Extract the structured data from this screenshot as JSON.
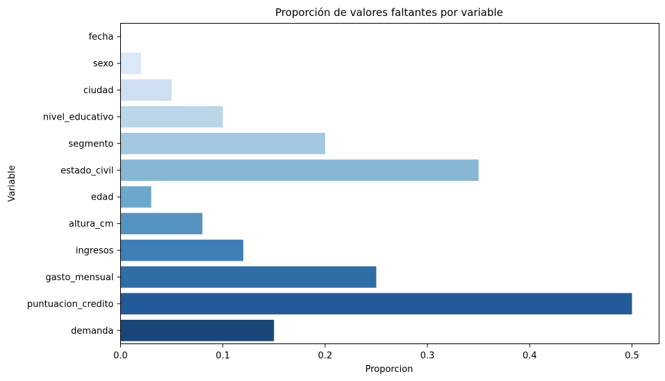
{
  "chart_data": {
    "type": "bar",
    "orientation": "horizontal",
    "title": "Proporción de valores faltantes por variable",
    "xlabel": "Proporcion",
    "ylabel": "Variable",
    "categories": [
      "fecha",
      "sexo",
      "ciudad",
      "nivel_educativo",
      "segmento",
      "estado_civil",
      "edad",
      "altura_cm",
      "ingresos",
      "gasto_mensual",
      "puntuacion_credito",
      "demanda"
    ],
    "values": [
      0.0,
      0.02,
      0.05,
      0.1,
      0.2,
      0.35,
      0.03,
      0.08,
      0.12,
      0.25,
      0.5,
      0.15
    ],
    "colors": [
      "#e3eef9",
      "#dbe9f6",
      "#cddff0",
      "#bad6e8",
      "#a3c8df",
      "#87b7d5",
      "#6da7cb",
      "#5593c0",
      "#3f7fb5",
      "#2f6da6",
      "#235a98",
      "#1a4677"
    ],
    "xlim": [
      0,
      0.5265
    ],
    "xticks": [
      0.0,
      0.1,
      0.2,
      0.3,
      0.4,
      0.5
    ],
    "xtick_labels": [
      "0.0",
      "0.1",
      "0.2",
      "0.3",
      "0.4",
      "0.5"
    ],
    "grid": false,
    "legend": "none",
    "palette": "Blues"
  }
}
